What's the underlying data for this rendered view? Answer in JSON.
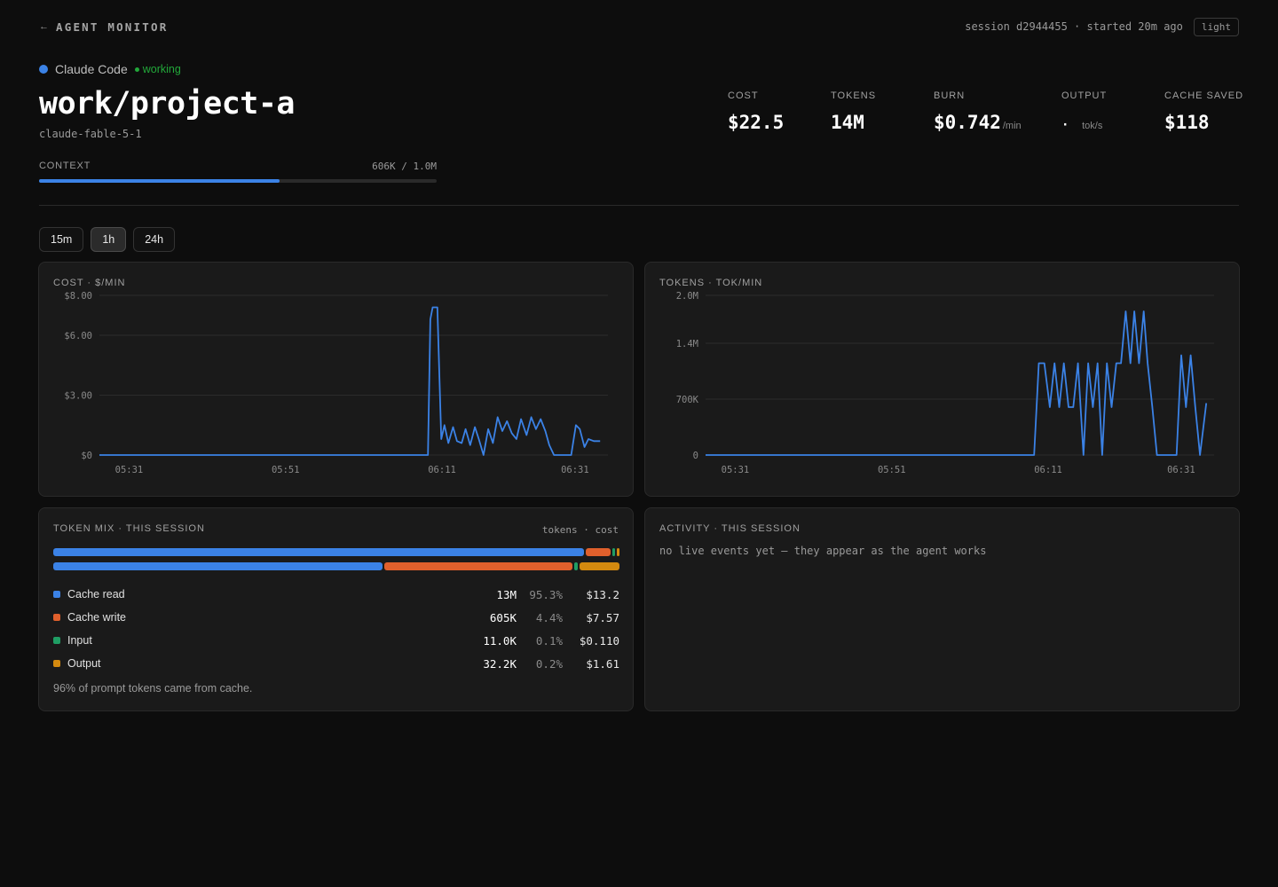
{
  "topbar": {
    "back_arrow": "←",
    "brand": "AGENT MONITOR",
    "session_info": "session d2944455 · started 20m ago",
    "theme_toggle": "light"
  },
  "agent": {
    "name": "Claude Code",
    "status": "working",
    "status_color": "#22a83a",
    "color": "#3b82e6"
  },
  "project": {
    "title": "work/project-a",
    "model": "claude-fable-5-1"
  },
  "context": {
    "label": "CONTEXT",
    "value": "606K / 1.0M",
    "fraction": 0.606
  },
  "stats": {
    "cost": {
      "label": "COST",
      "value": "$22.5"
    },
    "tokens": {
      "label": "TOKENS",
      "value": "14M"
    },
    "burn": {
      "label": "BURN",
      "value": "$0.742",
      "unit": "/min"
    },
    "output": {
      "label": "OUTPUT",
      "value": "·",
      "unit": "tok/s"
    },
    "cache_saved": {
      "label": "CACHE SAVED",
      "value": "$118"
    }
  },
  "ranges": [
    {
      "label": "15m",
      "active": false
    },
    {
      "label": "1h",
      "active": true
    },
    {
      "label": "24h",
      "active": false
    }
  ],
  "chart_data": [
    {
      "type": "line",
      "title": "COST · $/MIN",
      "ytick_labels": [
        "$0",
        "$3.00",
        "$6.00",
        "$8.00"
      ],
      "yticks": [
        0,
        3,
        6,
        8
      ],
      "ylim": [
        0,
        8
      ],
      "xtick_labels": [
        "05:31",
        "05:51",
        "06:11",
        "06:31"
      ],
      "xticks": [
        0,
        20,
        40,
        57
      ],
      "xlim": [
        -2,
        63
      ],
      "color": "#3b82e6",
      "x": [
        -2,
        0,
        40,
        40.3,
        40.6,
        41.2,
        41.7,
        42.1,
        42.6,
        43.2,
        43.7,
        44.3,
        44.8,
        45.4,
        46,
        46.5,
        47.1,
        47.7,
        48.3,
        48.9,
        49.5,
        50.1,
        50.7,
        51.3,
        51.9,
        52.6,
        53.2,
        53.8,
        54.4,
        55,
        55.5,
        56.1,
        56.6,
        57.2,
        57.8,
        58.3,
        58.9,
        59.4,
        60,
        60.5,
        61.2,
        62
      ],
      "y": [
        0,
        0,
        0,
        6.8,
        7.4,
        7.4,
        0.8,
        1.5,
        0.6,
        1.4,
        0.7,
        0.6,
        1.3,
        0.5,
        1.4,
        0.8,
        0,
        1.3,
        0.6,
        1.9,
        1.2,
        1.7,
        1.1,
        0.8,
        1.8,
        1.0,
        1.9,
        1.3,
        1.8,
        1.2,
        0.5,
        0,
        0,
        0,
        0,
        0,
        1.5,
        1.3,
        0.4,
        0.8,
        0.7,
        0.7
      ]
    },
    {
      "type": "line",
      "title": "TOKENS · TOK/MIN",
      "ytick_labels": [
        "0",
        "700K",
        "1.4M",
        "2.0M"
      ],
      "yticks": [
        0,
        700000,
        1400000,
        2000000
      ],
      "ylim": [
        0,
        2000000
      ],
      "xtick_labels": [
        "05:31",
        "05:51",
        "06:11",
        "06:31"
      ],
      "xticks": [
        0,
        20,
        40,
        57
      ],
      "xlim": [
        -2,
        63
      ],
      "color": "#3b82e6",
      "x": [
        -2,
        0,
        40,
        40.6,
        41.3,
        42,
        42.6,
        43.2,
        43.8,
        44.4,
        45,
        45.6,
        46.3,
        46.9,
        47.5,
        48.1,
        48.7,
        49.3,
        49.9,
        50.5,
        51.1,
        51.7,
        52.3,
        52.8,
        53.4,
        54,
        54.5,
        55.1,
        55.7,
        56.3,
        57,
        57.6,
        58.2,
        58.8,
        59.4,
        60,
        60.6,
        61.2,
        62
      ],
      "y": [
        0,
        0,
        0,
        1150000,
        1150000,
        600000,
        1150000,
        600000,
        1150000,
        600000,
        600000,
        1150000,
        0,
        1150000,
        600000,
        1150000,
        0,
        1150000,
        600000,
        1150000,
        1150000,
        1800000,
        1150000,
        1800000,
        1150000,
        1800000,
        1150000,
        600000,
        0,
        0,
        0,
        0,
        0,
        1250000,
        600000,
        1250000,
        600000,
        0,
        650000
      ]
    }
  ],
  "token_mix": {
    "title": "TOKEN MIX · THIS SESSION",
    "legend": "tokens · cost",
    "token_shares": [
      95.3,
      4.4,
      0.1,
      0.2
    ],
    "cost_shares": [
      58.9,
      33.7,
      0.5,
      7.2
    ],
    "items": [
      {
        "name": "Cache read",
        "color": "#3b82e6",
        "tokens": "13M",
        "pct": "95.3%",
        "cost": "$13.2"
      },
      {
        "name": "Cache write",
        "color": "#e0602c",
        "tokens": "605K",
        "pct": "4.4%",
        "cost": "$7.57"
      },
      {
        "name": "Input",
        "color": "#1f9e64",
        "tokens": "11.0K",
        "pct": "0.1%",
        "cost": "$0.110"
      },
      {
        "name": "Output",
        "color": "#d48a0f",
        "tokens": "32.2K",
        "pct": "0.2%",
        "cost": "$1.61"
      }
    ],
    "footnote": "96% of prompt tokens came from cache."
  },
  "activity": {
    "title": "ACTIVITY · THIS SESSION",
    "empty_message": "no live events yet — they appear as the agent works"
  }
}
